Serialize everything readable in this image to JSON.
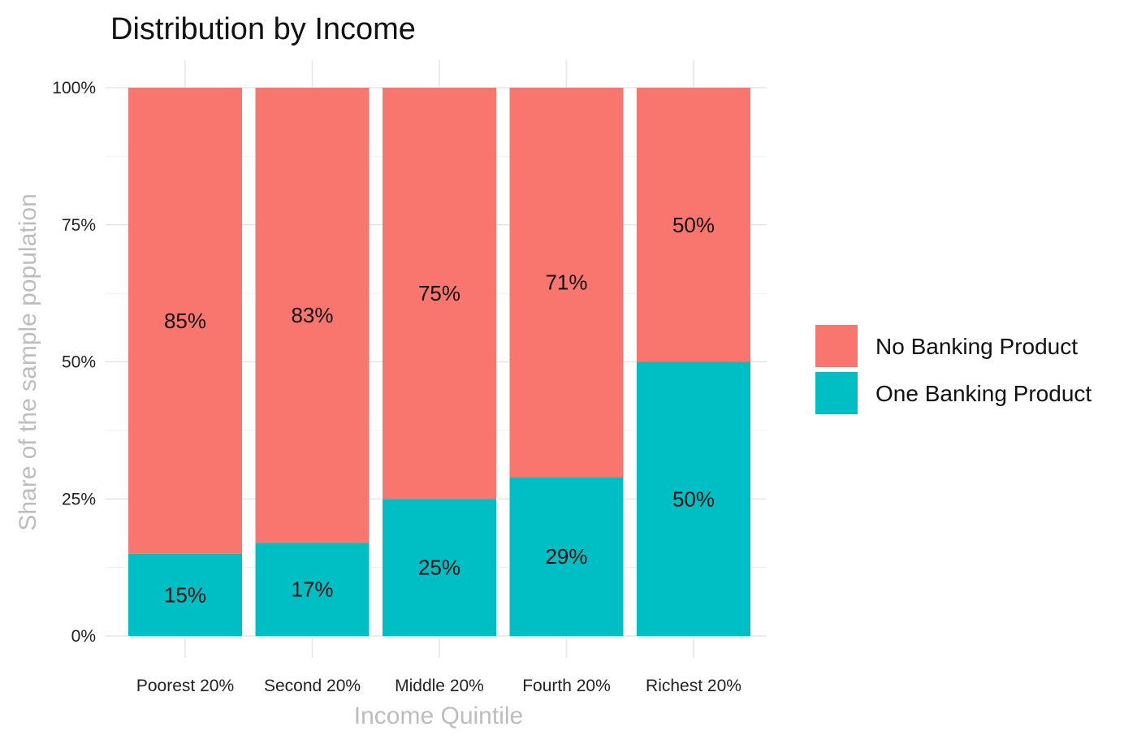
{
  "chart_data": {
    "type": "bar",
    "stacked": true,
    "title": "Distribution by Income",
    "xlabel": "Income Quintile",
    "ylabel": "Share of the sample population",
    "ylim": [
      0,
      100
    ],
    "yticks": [
      "0%",
      "25%",
      "50%",
      "75%",
      "100%"
    ],
    "ytick_values": [
      0,
      25,
      50,
      75,
      100
    ],
    "grid": true,
    "legend_position": "right",
    "categories": [
      "Poorest 20%",
      "Second 20%",
      "Middle 20%",
      "Fourth 20%",
      "Richest 20%"
    ],
    "series": [
      {
        "name": "One Banking Product",
        "color": "#00BFC4",
        "values": [
          15,
          17,
          25,
          29,
          50
        ],
        "labels": [
          "15%",
          "17%",
          "25%",
          "29%",
          "50%"
        ]
      },
      {
        "name": "No Banking Product",
        "color": "#F8766D",
        "values": [
          85,
          83,
          75,
          71,
          50
        ],
        "labels": [
          "85%",
          "83%",
          "75%",
          "71%",
          "50%"
        ]
      }
    ],
    "legend_order": [
      "No Banking Product",
      "One Banking Product"
    ]
  }
}
